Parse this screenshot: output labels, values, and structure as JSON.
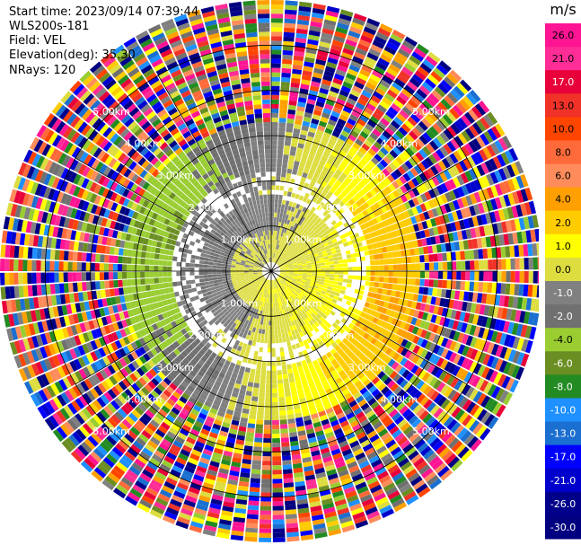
{
  "info": {
    "start_time": "Start time: 2023/09/14 07:39:44",
    "instrument": "WLS200s-181",
    "field": "Field: VEL",
    "elevation": "Elevation(deg): 35.30",
    "nrays": "NRays: 120"
  },
  "chart_data": {
    "type": "ppi_radar",
    "field": "VEL",
    "units": "m/s",
    "n_rays": 120,
    "elevation_deg": 35.3,
    "range_rings_km": [
      1.0,
      2.0,
      3.0,
      4.0,
      5.0
    ],
    "ring_labels": [
      "1.00km",
      "2.00km",
      "3.00km",
      "4.00km",
      "5.00km"
    ],
    "colorbar": {
      "title": "m/s",
      "min": -30.0,
      "max": 30.0,
      "tick_labels": [
        "26.0",
        "21.0",
        "17.0",
        "13.0",
        "10.0",
        "8.0",
        "6.0",
        "4.0",
        "2.0",
        "1.0",
        "0.0",
        "-1.0",
        "-2.0",
        "-4.0",
        "-6.0",
        "-8.0",
        "-10.0",
        "-13.0",
        "-17.0",
        "-21.0",
        "-26.0",
        "-30.0"
      ],
      "colors": [
        "#ff1493",
        "#ff2d95",
        "#e8003a",
        "#f03228",
        "#ff4500",
        "#ff6a3a",
        "#ff8c5a",
        "#ffa000",
        "#ffcc00",
        "#ffff00",
        "#dddd40",
        "#808080",
        "#707070",
        "#9acd32",
        "#6b8e23",
        "#228b22",
        "#1e90ff",
        "#1a6fd0",
        "#0000ff",
        "#0000cd",
        "#00008b",
        "#000080"
      ]
    }
  }
}
